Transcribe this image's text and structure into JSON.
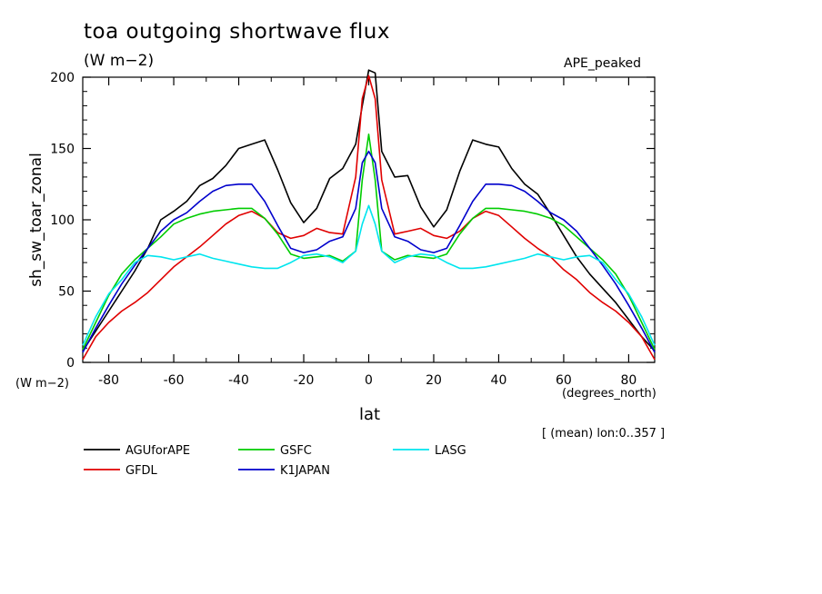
{
  "chart_data": {
    "type": "line",
    "title": "toa outgoing shortwave flux",
    "units": "(W m−2)",
    "experiment": "APE_peaked",
    "ylabel": "sh_sw_toar_zonal",
    "yunits": "(W m−2)",
    "xlabel": "lat",
    "xunits": "(degrees_north)",
    "mean_note": "[ (mean) lon:0..357 ]",
    "xlim": [
      -88,
      88
    ],
    "ylim": [
      0,
      200
    ],
    "xticks": [
      -80,
      -60,
      -40,
      -20,
      0,
      20,
      40,
      60,
      80
    ],
    "yticks": [
      0,
      50,
      100,
      150,
      200
    ],
    "grid": false,
    "legend_position": "bottom",
    "lat": [
      -88,
      -84,
      -80,
      -76,
      -72,
      -68,
      -64,
      -60,
      -56,
      -52,
      -48,
      -44,
      -40,
      -36,
      -32,
      -28,
      -24,
      -20,
      -16,
      -12,
      -8,
      -4,
      -2,
      0,
      2,
      4,
      8,
      12,
      16,
      20,
      24,
      28,
      32,
      36,
      40,
      44,
      48,
      52,
      56,
      60,
      64,
      68,
      72,
      76,
      80,
      84,
      88
    ],
    "series": [
      {
        "name": "AGUforAPE",
        "color": "#000000",
        "values": [
          8,
          22,
          36,
          50,
          64,
          80,
          100,
          106,
          113,
          124,
          129,
          138,
          150,
          153,
          156,
          135,
          112,
          98,
          108,
          129,
          136,
          153,
          180,
          205,
          203,
          148,
          130,
          131,
          109,
          95,
          107,
          134,
          156,
          153,
          151,
          136,
          125,
          118,
          104,
          89,
          74,
          62,
          52,
          42,
          30,
          18,
          8
        ]
      },
      {
        "name": "GFDL",
        "color": "#e00000",
        "values": [
          2,
          18,
          28,
          36,
          42,
          49,
          58,
          67,
          74,
          81,
          89,
          97,
          103,
          106,
          101,
          91,
          87,
          89,
          94,
          91,
          90,
          130,
          185,
          201,
          185,
          128,
          90,
          92,
          94,
          89,
          87,
          92,
          101,
          106,
          103,
          95,
          87,
          80,
          74,
          65,
          58,
          49,
          42,
          36,
          28,
          18,
          2
        ]
      },
      {
        "name": "GSFC",
        "color": "#00cc00",
        "values": [
          9,
          28,
          47,
          62,
          72,
          80,
          88,
          97,
          101,
          104,
          106,
          107,
          108,
          108,
          101,
          90,
          76,
          73,
          74,
          75,
          71,
          78,
          128,
          160,
          128,
          78,
          72,
          75,
          74,
          73,
          76,
          90,
          101,
          108,
          108,
          107,
          106,
          104,
          101,
          96,
          88,
          80,
          72,
          62,
          47,
          28,
          9
        ]
      },
      {
        "name": "K1JAPAN",
        "color": "#0000cc",
        "values": [
          7,
          24,
          40,
          55,
          68,
          80,
          92,
          100,
          105,
          113,
          120,
          124,
          125,
          125,
          113,
          96,
          80,
          77,
          79,
          85,
          88,
          108,
          140,
          148,
          140,
          108,
          88,
          85,
          79,
          77,
          80,
          96,
          113,
          125,
          125,
          124,
          120,
          113,
          105,
          100,
          92,
          80,
          68,
          55,
          40,
          24,
          7
        ]
      },
      {
        "name": "LASG",
        "color": "#00e5ee",
        "values": [
          12,
          32,
          48,
          58,
          70,
          75,
          74,
          72,
          74,
          76,
          73,
          71,
          69,
          67,
          66,
          66,
          70,
          75,
          76,
          74,
          70,
          78,
          97,
          110,
          97,
          78,
          70,
          74,
          76,
          75,
          70,
          66,
          66,
          67,
          69,
          71,
          73,
          76,
          74,
          72,
          74,
          75,
          70,
          58,
          48,
          32,
          12
        ]
      }
    ]
  }
}
